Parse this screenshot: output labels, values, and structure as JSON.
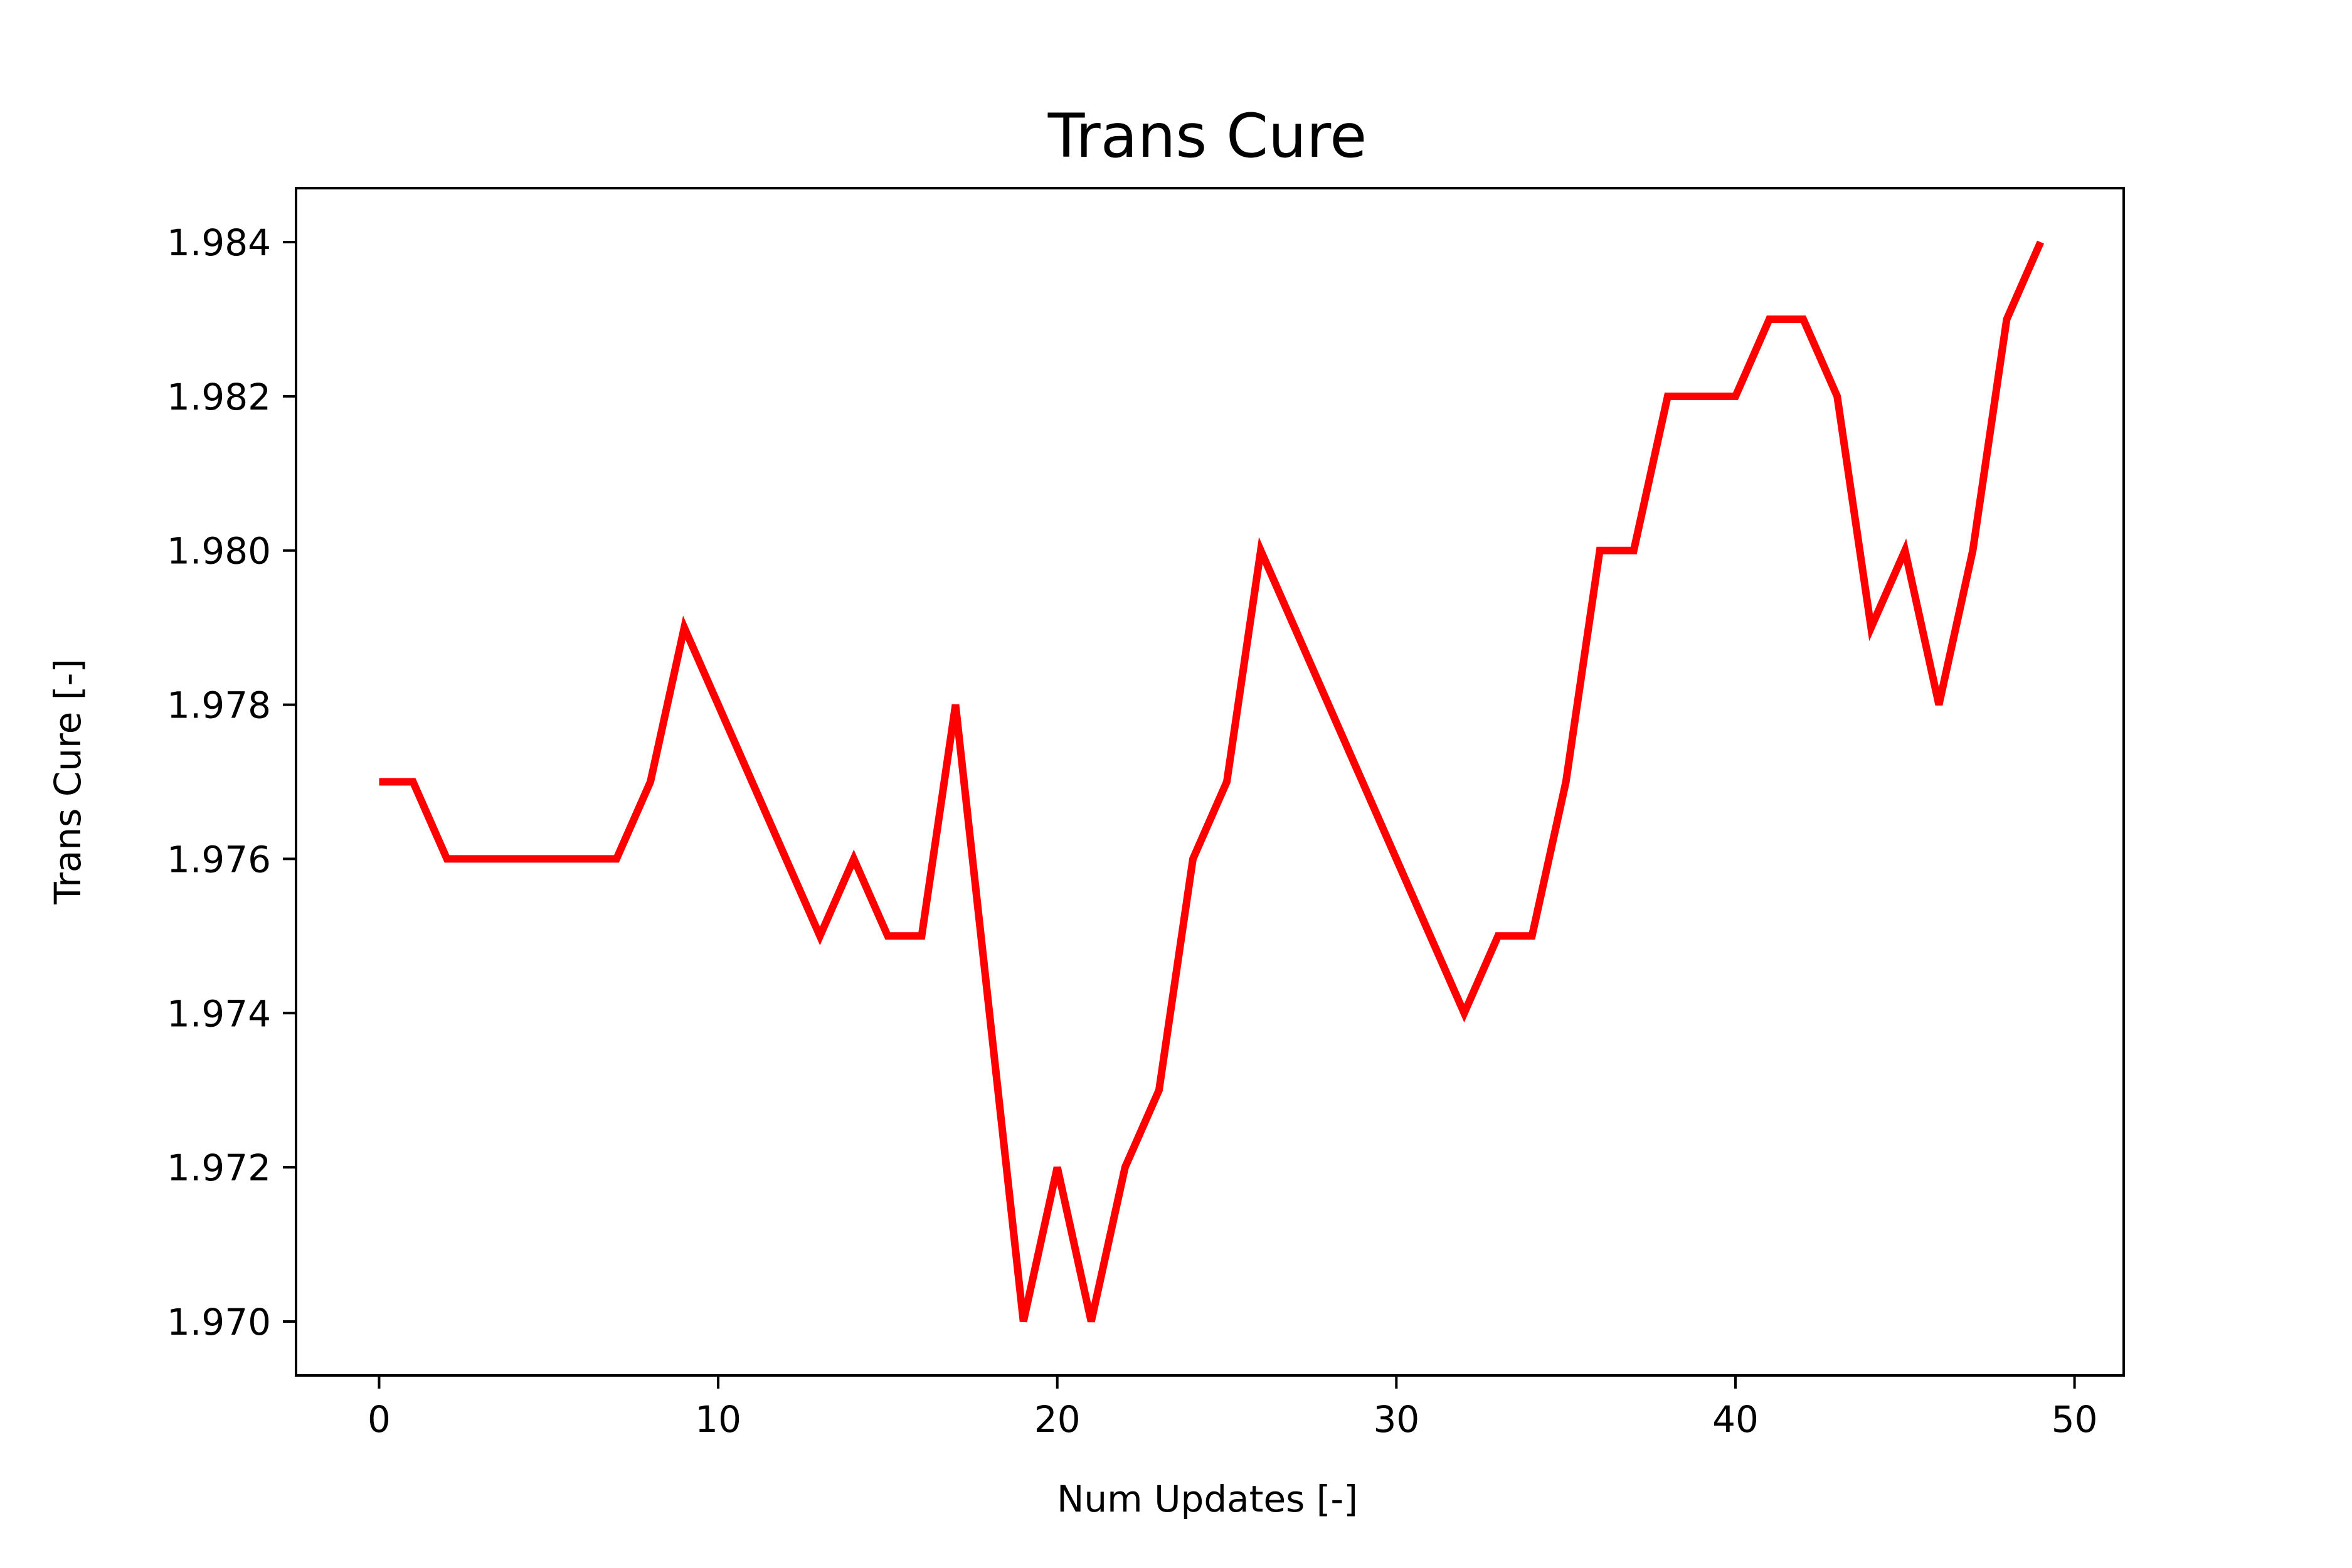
{
  "chart_data": {
    "type": "line",
    "title": "Trans Cure",
    "xlabel": "Num Updates [-]",
    "ylabel": "Trans Cure [-]",
    "xlim": [
      -2.45,
      51.45
    ],
    "ylim": [
      1.9693,
      1.9847
    ],
    "xticks": [
      0,
      10,
      20,
      30,
      40,
      50
    ],
    "yticks": [
      1.97,
      1.972,
      1.974,
      1.976,
      1.978,
      1.98,
      1.982,
      1.984
    ],
    "grid": false,
    "series": [
      {
        "color": "#ff0000",
        "x": [
          0,
          1,
          2,
          3,
          4,
          5,
          6,
          7,
          8,
          9,
          10,
          11,
          12,
          13,
          14,
          15,
          16,
          17,
          18,
          19,
          20,
          21,
          22,
          23,
          24,
          25,
          26,
          27,
          28,
          29,
          30,
          31,
          32,
          33,
          34,
          35,
          36,
          37,
          38,
          39,
          40,
          41,
          42,
          43,
          44,
          45,
          46,
          47,
          48,
          49
        ],
        "y": [
          1.977,
          1.977,
          1.976,
          1.976,
          1.976,
          1.976,
          1.976,
          1.976,
          1.977,
          1.979,
          1.978,
          1.977,
          1.976,
          1.975,
          1.976,
          1.975,
          1.975,
          1.978,
          1.974,
          1.97,
          1.972,
          1.97,
          1.972,
          1.973,
          1.976,
          1.977,
          1.98,
          1.979,
          1.978,
          1.977,
          1.976,
          1.975,
          1.974,
          1.975,
          1.975,
          1.977,
          1.98,
          1.98,
          1.982,
          1.982,
          1.982,
          1.983,
          1.983,
          1.982,
          1.979,
          1.98,
          1.978,
          1.98,
          1.983,
          1.984
        ]
      }
    ]
  }
}
